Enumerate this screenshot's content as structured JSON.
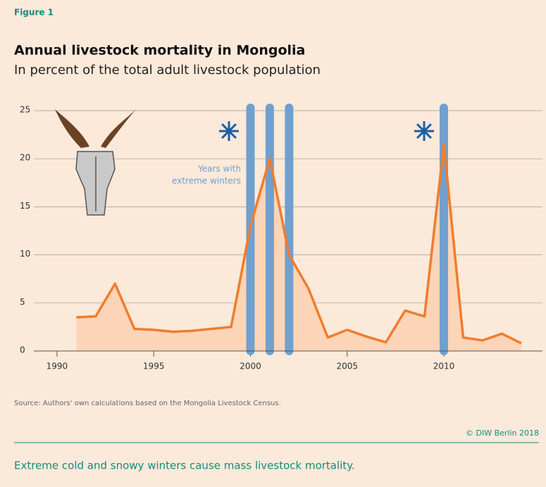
{
  "figure_label": "Figure 1",
  "chart_data": {
    "type": "line",
    "title": "Annual livestock mortality in Mongolia",
    "subtitle": "In percent of the total adult livestock population",
    "x": [
      1991,
      1992,
      1993,
      1994,
      1995,
      1996,
      1997,
      1998,
      1999,
      2000,
      2001,
      2002,
      2003,
      2004,
      2005,
      2006,
      2007,
      2008,
      2009,
      2010,
      2011,
      2012,
      2013,
      2014
    ],
    "series": [
      {
        "name": "Livestock mortality",
        "color": "#f07d2c",
        "area_color": "#fcd5b8",
        "values": [
          3.5,
          3.6,
          7.0,
          2.3,
          2.2,
          2.0,
          2.1,
          2.3,
          2.5,
          13.0,
          20.0,
          10.0,
          6.5,
          1.4,
          2.2,
          1.5,
          0.9,
          4.2,
          3.6,
          21.5,
          1.4,
          1.1,
          1.8,
          0.8
        ]
      }
    ],
    "highlight_years": [
      2000,
      2001,
      2002,
      2010
    ],
    "highlight_color": "#6fa0cf",
    "annotation": [
      "Years with",
      "extreme winters"
    ],
    "xlim": [
      1988.8,
      2015.1
    ],
    "xticks": [
      1990,
      1995,
      2000,
      2005,
      2010
    ],
    "ylim": [
      0,
      25
    ],
    "yticks": [
      0,
      5,
      10,
      15,
      20,
      25
    ],
    "grid": true
  },
  "source": "Source: Authors' own calculations based on the Mongolia Livestock Census.",
  "copyright": "© DIW Berlin 2018",
  "caption": "Extreme cold and snowy winters cause mass livestock mortality."
}
